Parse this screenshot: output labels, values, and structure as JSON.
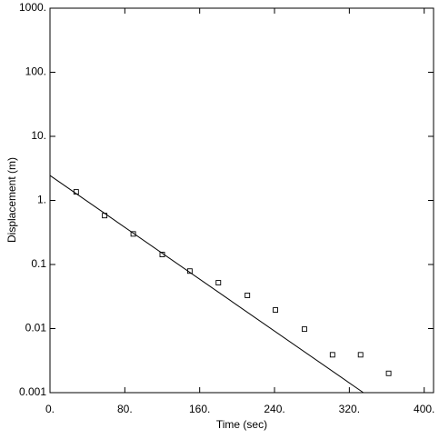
{
  "chart_data": {
    "type": "scatter",
    "xlabel": "Time (sec)",
    "ylabel": "Displacement (m)",
    "yscale": "log",
    "xlim": [
      0,
      410
    ],
    "ylim": [
      0.001,
      1000
    ],
    "xticks": [
      {
        "value": 0,
        "label": "0."
      },
      {
        "value": 80,
        "label": "80."
      },
      {
        "value": 160,
        "label": "160."
      },
      {
        "value": 240,
        "label": "240."
      },
      {
        "value": 320,
        "label": "320."
      },
      {
        "value": 400,
        "label": "400."
      }
    ],
    "yticks": [
      0.001,
      0.01,
      0.1,
      {
        "value": 1,
        "label": "1."
      },
      {
        "value": 10,
        "label": "10."
      },
      {
        "value": 100,
        "label": "100."
      },
      {
        "value": 1000,
        "label": "1000."
      }
    ],
    "series": [
      {
        "kind": "marker",
        "color": "#000000",
        "x": [
          28,
          58.4,
          89,
          120,
          149.5,
          180,
          211,
          241,
          272,
          302,
          332,
          362
        ],
        "values": [
          1.36,
          0.58,
          0.3,
          0.143,
          0.079,
          0.052,
          0.033,
          0.0195,
          0.0098,
          0.0039,
          0.0039,
          0.002
        ]
      },
      {
        "kind": "line",
        "color": "#000000",
        "x": [
          0,
          335
        ],
        "values": [
          2.45,
          0.001
        ]
      }
    ]
  }
}
